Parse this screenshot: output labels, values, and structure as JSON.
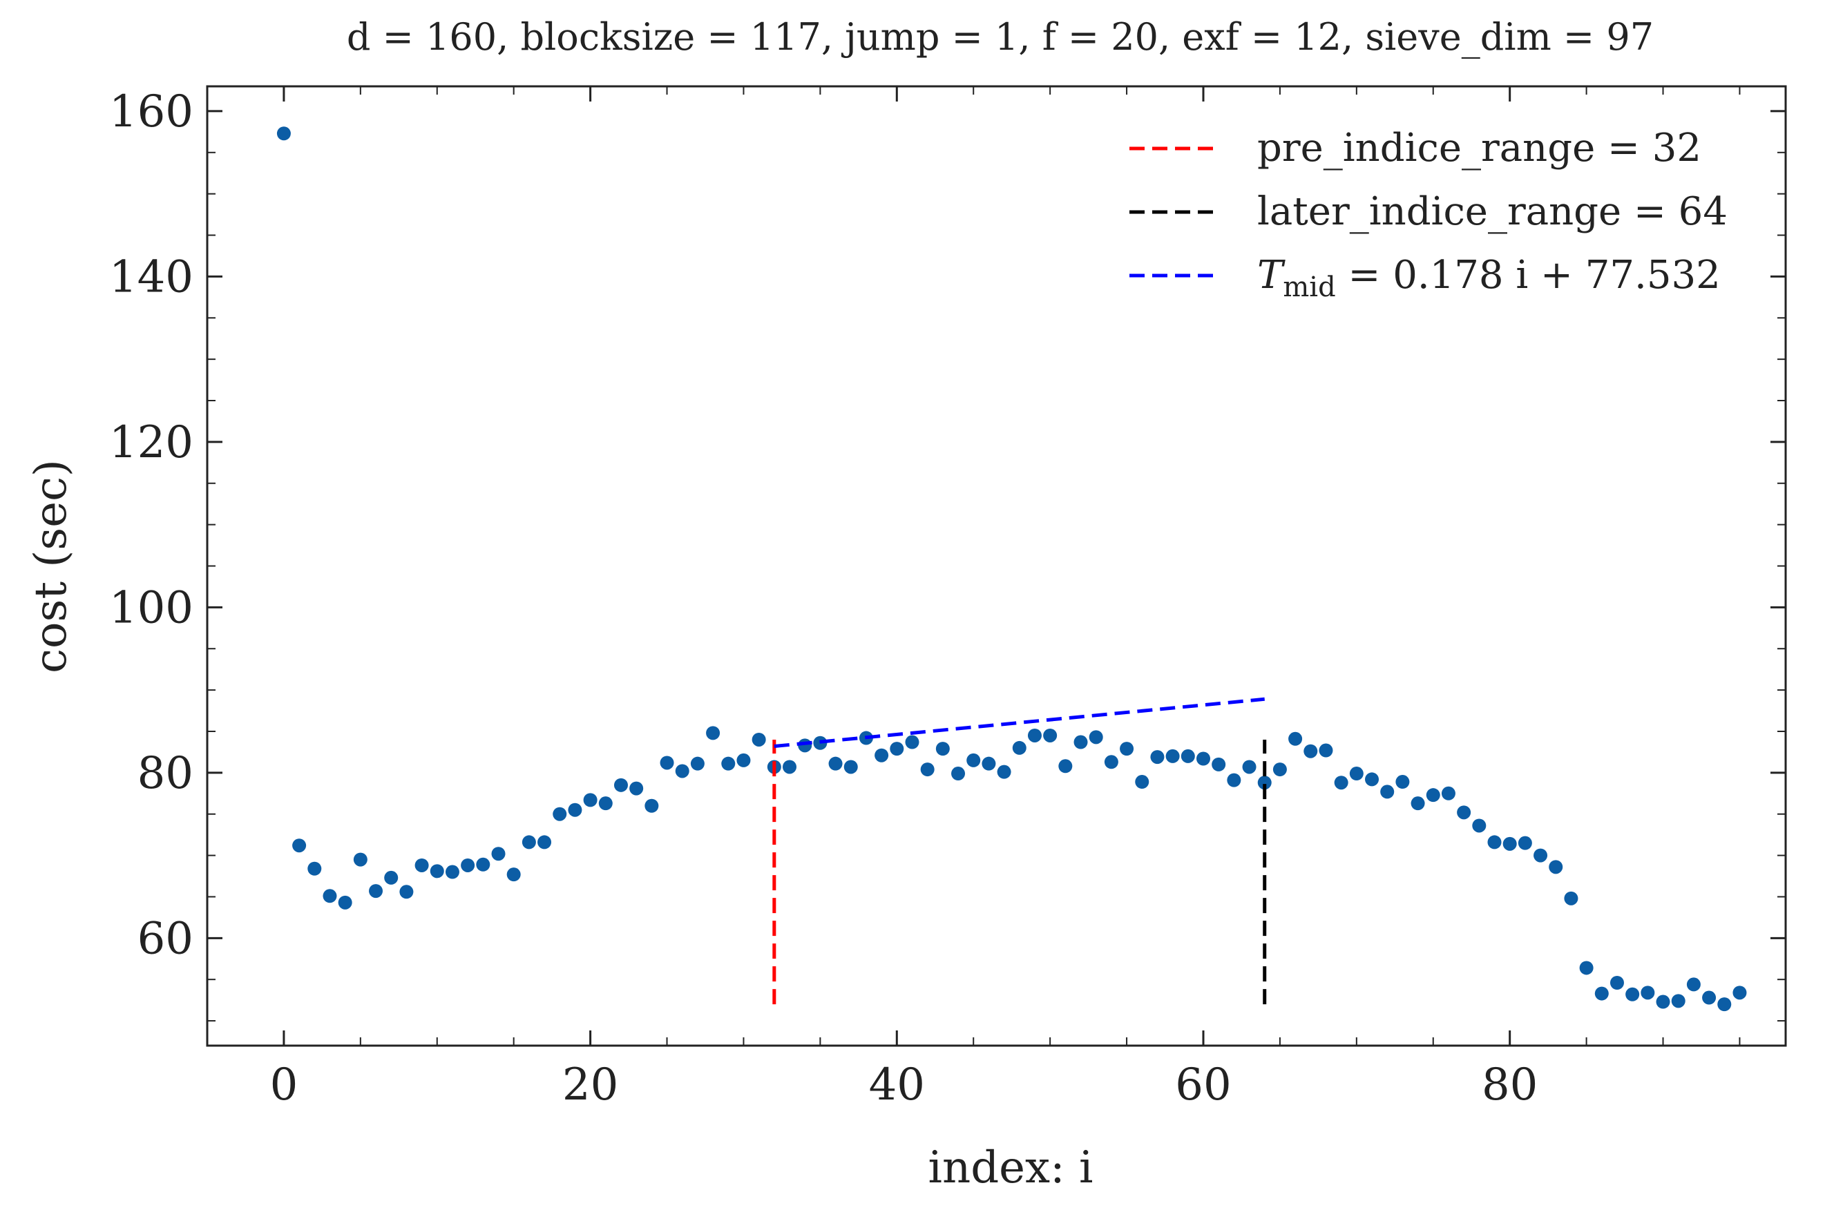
{
  "chart_data": {
    "type": "scatter",
    "title": "d = 160, blocksize = 117, jump = 1, f = 20, exf = 12, sieve_dim = 97",
    "xlabel": "index: i",
    "ylabel": "cost (sec)",
    "xlim": [
      -5,
      98
    ],
    "ylim": [
      47,
      163
    ],
    "xticks": [
      0,
      20,
      40,
      60,
      80
    ],
    "yticks": [
      60,
      80,
      100,
      120,
      140,
      160
    ],
    "legend_position": "top-right",
    "grid": false,
    "series": [
      {
        "type": "scatter",
        "color": "#0c5da5",
        "x": [
          0,
          1,
          2,
          3,
          4,
          5,
          6,
          7,
          8,
          9,
          10,
          11,
          12,
          13,
          14,
          15,
          16,
          17,
          18,
          19,
          20,
          21,
          22,
          23,
          24,
          25,
          26,
          27,
          28,
          29,
          30,
          31,
          32,
          33,
          34,
          35,
          36,
          37,
          38,
          39,
          40,
          41,
          42,
          43,
          44,
          45,
          46,
          47,
          48,
          49,
          50,
          51,
          52,
          53,
          54,
          55,
          56,
          57,
          58,
          59,
          60,
          61,
          62,
          63,
          64,
          65,
          66,
          67,
          68,
          69,
          70,
          71,
          72,
          73,
          74,
          75,
          76,
          77,
          78,
          79,
          80,
          81,
          82,
          83,
          84,
          85,
          86,
          87,
          88,
          89,
          90,
          91,
          92,
          93,
          94,
          95
        ],
        "y": [
          157.3,
          71.2,
          68.4,
          65.1,
          64.3,
          69.5,
          65.7,
          67.3,
          65.6,
          68.8,
          68.1,
          68.0,
          68.8,
          68.9,
          70.2,
          67.7,
          71.6,
          71.6,
          75.0,
          75.5,
          76.7,
          76.3,
          78.5,
          78.1,
          76.0,
          81.2,
          80.2,
          81.1,
          84.8,
          81.1,
          81.5,
          84.0,
          80.7,
          80.7,
          83.3,
          83.6,
          81.1,
          80.7,
          84.2,
          82.1,
          82.9,
          83.7,
          80.4,
          82.9,
          79.9,
          81.5,
          81.1,
          80.1,
          83.0,
          84.5,
          84.5,
          80.8,
          83.7,
          84.3,
          81.3,
          82.9,
          78.9,
          81.9,
          82.0,
          82.0,
          81.7,
          81.0,
          79.1,
          80.7,
          78.8,
          80.4,
          84.1,
          82.6,
          82.7,
          78.8,
          79.9,
          79.2,
          77.7,
          78.9,
          76.3,
          77.3,
          77.5,
          75.2,
          73.6,
          71.6,
          71.4,
          71.5,
          70.0,
          68.6,
          64.8,
          56.4,
          53.3,
          54.6,
          53.2,
          53.4,
          52.3,
          52.4,
          54.4,
          52.8,
          52.0,
          53.4
        ]
      },
      {
        "type": "line",
        "name": "pre_indice_range = 32",
        "color": "#ff0000",
        "x": [
          32,
          32
        ],
        "y": [
          52,
          84
        ]
      },
      {
        "type": "line",
        "name": "later_indice_range = 64",
        "color": "#000000",
        "x": [
          64,
          64
        ],
        "y": [
          52,
          84
        ]
      },
      {
        "type": "line",
        "name_prefix": "T",
        "name_subscript": "mid",
        "name_suffix": " = 0.178 i + 77.532",
        "color": "#0000ff",
        "x": [
          32,
          64
        ],
        "y": [
          83.2,
          88.9
        ]
      }
    ]
  }
}
